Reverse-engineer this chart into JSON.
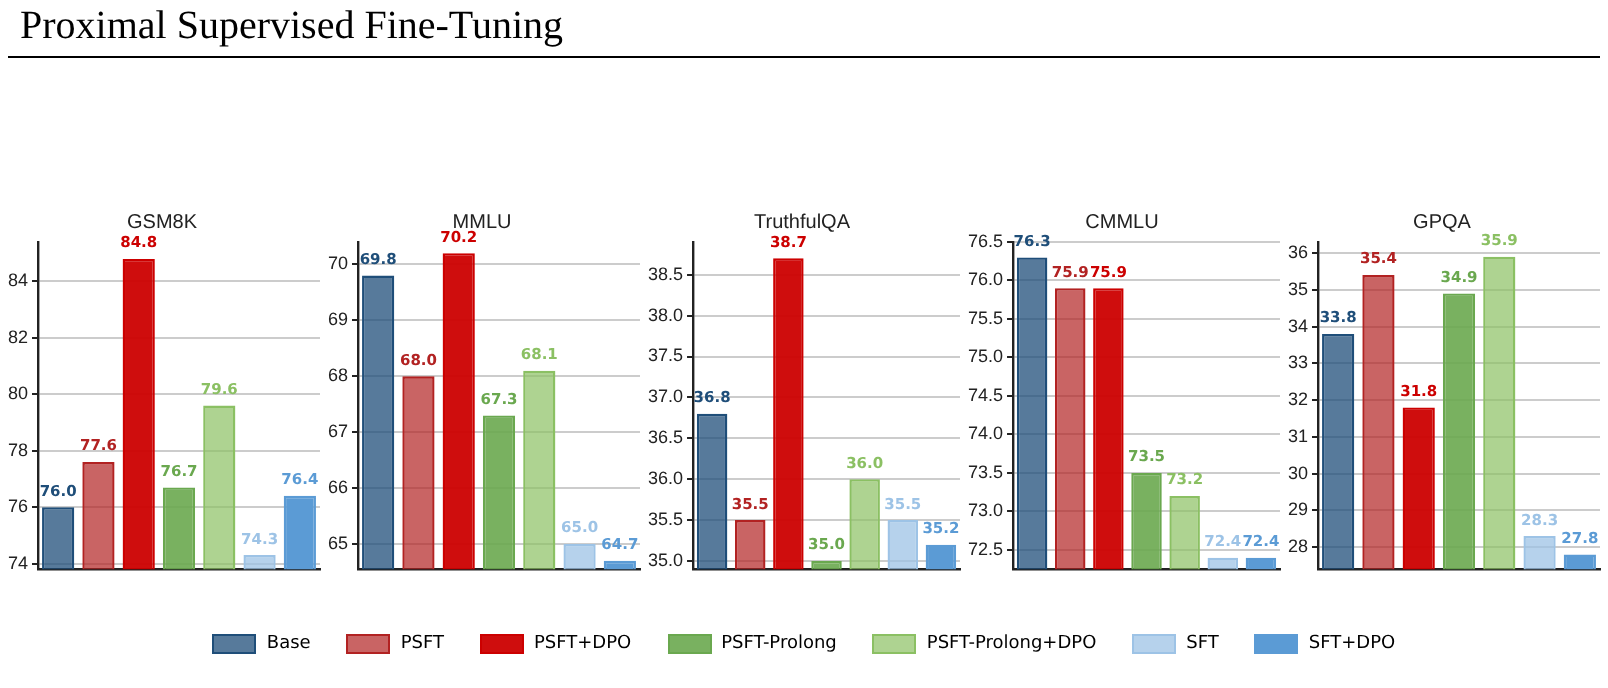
{
  "chart_data": [
    {
      "type": "bar",
      "title": "GSM8K",
      "annotations": [
        "Proximal Supervised Fine-Tuning"
      ],
      "categories": [
        null
      ],
      "legend": "bottom",
      "grid": "y",
      "ylim": [
        73.8,
        85.4
      ],
      "yticks": [
        74,
        76,
        78,
        80,
        82,
        84
      ],
      "series": [
        {
          "name": "Base",
          "color": "#1f4e79",
          "values": [
            76.0
          ],
          "value_labels": [
            "76.0"
          ]
        },
        {
          "name": "PSFT",
          "color": "#b22222",
          "values": [
            77.6
          ],
          "value_labels": [
            "77.6"
          ]
        },
        {
          "name": "PSFT+DPO",
          "color": "#cc0000",
          "values": [
            84.8
          ],
          "value_labels": [
            "84.8"
          ]
        },
        {
          "name": "PSFT-Prolong",
          "color": "#6aa84f",
          "values": [
            76.7
          ],
          "value_labels": [
            "76.7"
          ]
        },
        {
          "name": "PSFT-Prolong+DPO",
          "color": "#8bc063",
          "values": [
            79.6
          ],
          "value_labels": [
            "79.6"
          ]
        },
        {
          "name": "SFT",
          "color": "#9dc3e6",
          "values": [
            74.3
          ],
          "value_labels": [
            "74.3"
          ]
        },
        {
          "name": "SFT+DPO",
          "color": "#5b9bd5",
          "values": [
            76.4
          ],
          "value_labels": [
            "76.4"
          ]
        }
      ]
    },
    {
      "type": "bar",
      "title": "MMLU",
      "categories": [
        null
      ],
      "grid": "y",
      "ylim": [
        64.55,
        70.4
      ],
      "yticks": [
        65,
        66,
        67,
        68,
        69,
        70
      ],
      "series": [
        {
          "color": "#1f4e79",
          "values": [
            69.8
          ],
          "value_labels": [
            "69.8"
          ]
        },
        {
          "color": "#b22222",
          "values": [
            68.0
          ],
          "value_labels": [
            "68.0"
          ]
        },
        {
          "color": "#cc0000",
          "values": [
            70.2
          ],
          "value_labels": [
            "70.2"
          ]
        },
        {
          "color": "#6aa84f",
          "values": [
            67.3
          ],
          "value_labels": [
            "67.3"
          ]
        },
        {
          "color": "#8bc063",
          "values": [
            68.1
          ],
          "value_labels": [
            "68.1"
          ]
        },
        {
          "color": "#9dc3e6",
          "values": [
            65.0
          ],
          "value_labels": [
            "65.0"
          ]
        },
        {
          "color": "#5b9bd5",
          "values": [
            64.7
          ],
          "value_labels": [
            "64.7"
          ]
        }
      ]
    },
    {
      "type": "bar",
      "title": "TruthfulQA",
      "categories": [
        null
      ],
      "grid": "y",
      "ylim": [
        34.9,
        38.9
      ],
      "yticks": [
        {
          "value": 35,
          "label": "35.0"
        },
        35.5,
        {
          "value": 36,
          "label": "36.0"
        },
        36.5,
        {
          "value": 37,
          "label": "37.0"
        },
        37.5,
        {
          "value": 38,
          "label": "38.0"
        },
        38.5
      ],
      "series": [
        {
          "color": "#1f4e79",
          "values": [
            36.8
          ],
          "value_labels": [
            "36.8"
          ]
        },
        {
          "color": "#b22222",
          "values": [
            35.5
          ],
          "value_labels": [
            "35.5"
          ]
        },
        {
          "color": "#cc0000",
          "values": [
            38.7
          ],
          "value_labels": [
            "38.7"
          ]
        },
        {
          "color": "#6aa84f",
          "values": [
            35.0
          ],
          "value_labels": [
            "35.0"
          ]
        },
        {
          "color": "#8bc063",
          "values": [
            36.0
          ],
          "value_labels": [
            "36.0"
          ]
        },
        {
          "color": "#9dc3e6",
          "values": [
            35.5
          ],
          "value_labels": [
            "35.5"
          ]
        },
        {
          "color": "#5b9bd5",
          "values": [
            35.2
          ],
          "value_labels": [
            "35.2"
          ]
        }
      ]
    },
    {
      "type": "bar",
      "title": "CMMLU",
      "categories": [
        null
      ],
      "grid": "y",
      "ylim": [
        72.25,
        76.5
      ],
      "yticks": [
        72.5,
        {
          "value": 73,
          "label": "73.0"
        },
        73.5,
        {
          "value": 74,
          "label": "74.0"
        },
        74.5,
        {
          "value": 75,
          "label": "75.0"
        },
        75.5,
        {
          "value": 76,
          "label": "76.0"
        },
        76.5
      ],
      "series": [
        {
          "color": "#1f4e79",
          "values": [
            76.3
          ],
          "value_labels": [
            "76.3"
          ]
        },
        {
          "color": "#b22222",
          "values": [
            75.9
          ],
          "value_labels": [
            "75.9"
          ]
        },
        {
          "color": "#cc0000",
          "values": [
            75.9
          ],
          "value_labels": [
            "75.9"
          ]
        },
        {
          "color": "#6aa84f",
          "values": [
            73.5
          ],
          "value_labels": [
            "73.5"
          ]
        },
        {
          "color": "#8bc063",
          "values": [
            73.2
          ],
          "value_labels": [
            "73.2"
          ]
        },
        {
          "color": "#9dc3e6",
          "values": [
            72.4
          ],
          "value_labels": [
            "72.4"
          ]
        },
        {
          "color": "#5b9bd5",
          "values": [
            72.4
          ],
          "value_labels": [
            "72.4"
          ]
        }
      ]
    },
    {
      "type": "bar",
      "title": "GPQA",
      "categories": [
        null
      ],
      "grid": "y",
      "ylim": [
        27.4,
        36.3
      ],
      "yticks": [
        28,
        29,
        30,
        31,
        32,
        33,
        34,
        35,
        36
      ],
      "series": [
        {
          "color": "#1f4e79",
          "values": [
            33.8
          ],
          "value_labels": [
            "33.8"
          ]
        },
        {
          "color": "#b22222",
          "values": [
            35.4
          ],
          "value_labels": [
            "35.4"
          ]
        },
        {
          "color": "#cc0000",
          "values": [
            31.8
          ],
          "value_labels": [
            "31.8"
          ]
        },
        {
          "color": "#6aa84f",
          "values": [
            34.9
          ],
          "value_labels": [
            "34.9"
          ]
        },
        {
          "color": "#8bc063",
          "values": [
            35.9
          ],
          "value_labels": [
            "35.9"
          ]
        },
        {
          "color": "#9dc3e6",
          "values": [
            28.3
          ],
          "value_labels": [
            "28.3"
          ]
        },
        {
          "color": "#5b9bd5",
          "values": [
            27.8
          ],
          "value_labels": [
            "27.8"
          ]
        }
      ]
    }
  ]
}
